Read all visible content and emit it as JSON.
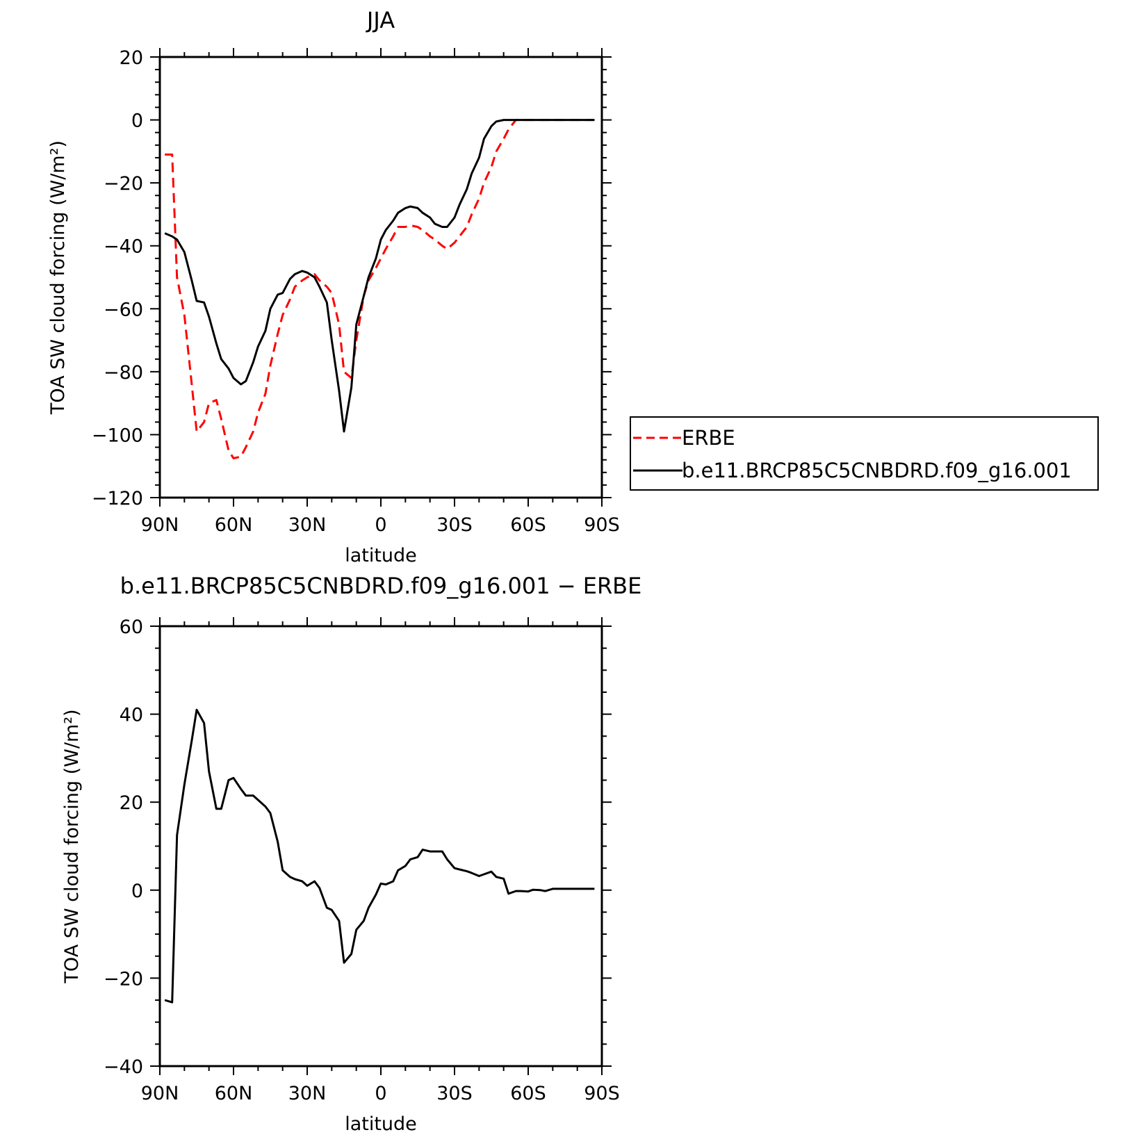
{
  "chart_data": [
    {
      "type": "line",
      "title": "JJA",
      "xlabel": "latitude",
      "ylabel": "TOA SW cloud forcing (W/m²)",
      "xlim": [
        90,
        -90
      ],
      "ylim": [
        -120,
        20
      ],
      "x_ticks": [
        {
          "value": 90,
          "label": "90N"
        },
        {
          "value": 60,
          "label": "60N"
        },
        {
          "value": 30,
          "label": "30N"
        },
        {
          "value": 0,
          "label": "0"
        },
        {
          "value": -30,
          "label": "30S"
        },
        {
          "value": -60,
          "label": "60S"
        },
        {
          "value": -90,
          "label": "90S"
        }
      ],
      "y_ticks": [
        {
          "value": 20,
          "label": "20"
        },
        {
          "value": 0,
          "label": "0"
        },
        {
          "value": -20,
          "label": "−20"
        },
        {
          "value": -40,
          "label": "−40"
        },
        {
          "value": -60,
          "label": "−60"
        },
        {
          "value": -80,
          "label": "−80"
        },
        {
          "value": -100,
          "label": "−100"
        },
        {
          "value": -120,
          "label": "−120"
        }
      ],
      "legend_position": "right",
      "series": [
        {
          "name": "ERBE",
          "color": "#ff0000",
          "dash": "dashed",
          "x": [
            88,
            85,
            83,
            80,
            77,
            75,
            72,
            70,
            67,
            65,
            62,
            60,
            57,
            55,
            52,
            50,
            47,
            45,
            42,
            40,
            37,
            35,
            32,
            30,
            27,
            25,
            22,
            20,
            17,
            15,
            12,
            10,
            7,
            5,
            2,
            0,
            -2,
            -5,
            -7,
            -10,
            -12,
            -15,
            -17,
            -20,
            -22,
            -25,
            -27,
            -30,
            -32,
            -35,
            -37,
            -40,
            -42,
            -45,
            -47,
            -50,
            -52,
            -55,
            -57,
            -60,
            -62,
            -65,
            -67,
            -70,
            -72,
            -75,
            -77,
            -80,
            -82,
            -85,
            -87
          ],
          "y": [
            -11,
            -11,
            -50,
            -62,
            -84,
            -99,
            -96,
            -90,
            -89,
            -95,
            -105,
            -107.5,
            -107,
            -104,
            -99,
            -93,
            -87,
            -78,
            -68,
            -62,
            -57,
            -53,
            -51,
            -50,
            -49,
            -51,
            -53,
            -55,
            -65,
            -80,
            -82,
            -70,
            -56,
            -51,
            -47,
            -44,
            -41,
            -37,
            -34,
            -34,
            -33.5,
            -34,
            -35,
            -37,
            -38,
            -40,
            -41,
            -39,
            -37,
            -34,
            -30,
            -25,
            -20,
            -15,
            -10,
            -6,
            -3,
            0,
            0,
            0,
            0,
            0,
            0,
            0,
            0,
            0,
            0,
            0,
            0,
            0,
            0
          ]
        },
        {
          "name": "b.e11.BRCP85C5CNBDRD.f09_g16.001",
          "color": "#000000",
          "dash": "solid",
          "x": [
            88,
            85,
            83,
            80,
            77,
            75,
            72,
            70,
            67,
            65,
            62,
            60,
            57,
            55,
            52,
            50,
            47,
            45,
            42,
            40,
            37,
            35,
            32,
            30,
            27,
            25,
            22,
            20,
            17,
            15,
            12,
            10,
            7,
            5,
            2,
            0,
            -2,
            -5,
            -7,
            -10,
            -12,
            -15,
            -17,
            -20,
            -22,
            -25,
            -27,
            -30,
            -32,
            -35,
            -37,
            -40,
            -42,
            -45,
            -47,
            -50,
            -52,
            -55,
            -57,
            -60,
            -62,
            -65,
            -67,
            -70,
            -72,
            -75,
            -77,
            -80,
            -82,
            -85,
            -87
          ],
          "y": [
            -36,
            -37,
            -38,
            -42,
            -51,
            -57.5,
            -58,
            -62.5,
            -71,
            -76,
            -79,
            -82,
            -84,
            -83,
            -77,
            -72,
            -67,
            -60,
            -55.5,
            -55,
            -50.5,
            -49,
            -48,
            -48.5,
            -50,
            -53,
            -58,
            -70,
            -86,
            -99,
            -85,
            -65,
            -56,
            -50,
            -44,
            -38,
            -35,
            -32,
            -29.5,
            -28,
            -27.5,
            -28,
            -29.5,
            -31,
            -33,
            -34,
            -34,
            -31,
            -27,
            -22,
            -17,
            -12,
            -6,
            -2,
            -0.5,
            0,
            0,
            0,
            0,
            0,
            0,
            0,
            0,
            0,
            0,
            0,
            0,
            0,
            0,
            0,
            0
          ]
        }
      ]
    },
    {
      "type": "line",
      "title": "b.e11.BRCP85C5CNBDRD.f09_g16.001 − ERBE",
      "xlabel": "latitude",
      "ylabel": "TOA SW cloud forcing (W/m²)",
      "xlim": [
        90,
        -90
      ],
      "ylim": [
        -40,
        60
      ],
      "x_ticks": [
        {
          "value": 90,
          "label": "90N"
        },
        {
          "value": 60,
          "label": "60N"
        },
        {
          "value": 30,
          "label": "30N"
        },
        {
          "value": 0,
          "label": "0"
        },
        {
          "value": -30,
          "label": "30S"
        },
        {
          "value": -60,
          "label": "60S"
        },
        {
          "value": -90,
          "label": "90S"
        }
      ],
      "y_ticks": [
        {
          "value": 60,
          "label": "60"
        },
        {
          "value": 40,
          "label": "40"
        },
        {
          "value": 20,
          "label": "20"
        },
        {
          "value": 0,
          "label": "0"
        },
        {
          "value": -20,
          "label": "−20"
        },
        {
          "value": -40,
          "label": "−40"
        }
      ],
      "series": [
        {
          "color": "#000000",
          "dash": "solid",
          "x": [
            88,
            85,
            83,
            80,
            77,
            75,
            72,
            70,
            67,
            65,
            62,
            60,
            57,
            55,
            52,
            50,
            47,
            45,
            42,
            40,
            37,
            35,
            32,
            30,
            27,
            25,
            22,
            20,
            17,
            15,
            12,
            10,
            7,
            5,
            2,
            0,
            -2,
            -5,
            -7,
            -10,
            -12,
            -15,
            -17,
            -20,
            -22,
            -25,
            -27,
            -30,
            -32,
            -35,
            -37,
            -40,
            -42,
            -45,
            -47,
            -50,
            -52,
            -55,
            -57,
            -60,
            -62,
            -65,
            -67,
            -70,
            -72,
            -75,
            -77,
            -80,
            -82,
            -85,
            -87
          ],
          "y": [
            -25,
            -25.5,
            12.5,
            24,
            34,
            41,
            38,
            27,
            18.5,
            18.5,
            25,
            25.5,
            23,
            21.5,
            21.5,
            20.5,
            19,
            17.5,
            11,
            4.5,
            3,
            2.5,
            2,
            1,
            2,
            0.5,
            -4,
            -4.5,
            -7,
            -16.5,
            -14.5,
            -9,
            -7,
            -4,
            -1,
            1.5,
            1.3,
            2,
            4.5,
            5.5,
            7,
            7.5,
            9.2,
            8.8,
            8.8,
            8.8,
            7,
            5,
            4.7,
            4.3,
            3.9,
            3.2,
            3.6,
            4.2,
            3,
            2.6,
            -0.8,
            -0.2,
            -0.2,
            -0.3,
            0.1,
            0,
            -0.2,
            0.3,
            0.3,
            0.3,
            0.3,
            0.3,
            0.3,
            0.3,
            0.3
          ]
        }
      ]
    }
  ]
}
